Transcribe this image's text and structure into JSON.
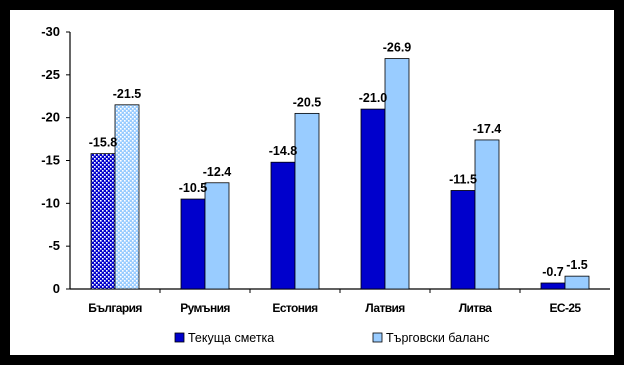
{
  "chart_data": {
    "type": "bar",
    "categories": [
      "България",
      "Румъния",
      "Естония",
      "Латвия",
      "Литва",
      "ЕС-25"
    ],
    "series": [
      {
        "name": "Текуща сметка",
        "values": [
          -15.8,
          -10.5,
          -14.8,
          -21.0,
          -11.5,
          -0.7
        ],
        "labels": [
          "-15.8",
          "-10.5",
          "-14.8",
          "-21.0",
          "-11.5",
          "-0.7"
        ],
        "color": "#0000cc"
      },
      {
        "name": "Търговски баланс",
        "values": [
          -21.5,
          -12.4,
          -20.5,
          -26.9,
          -17.4,
          -1.5
        ],
        "labels": [
          "-21.5",
          "-12.4",
          "-20.5",
          "-26.9",
          "-17.4",
          "-1.5"
        ],
        "color": "#99ccff"
      }
    ],
    "yticks": [
      "-30",
      "-25",
      "-20",
      "-15",
      "-10",
      "-5",
      "0"
    ],
    "ylim": [
      0,
      -30
    ],
    "axis_reversed": true,
    "grid": false,
    "legend": "bottom",
    "pattern_note": "first category bars are hatched/dotted"
  }
}
